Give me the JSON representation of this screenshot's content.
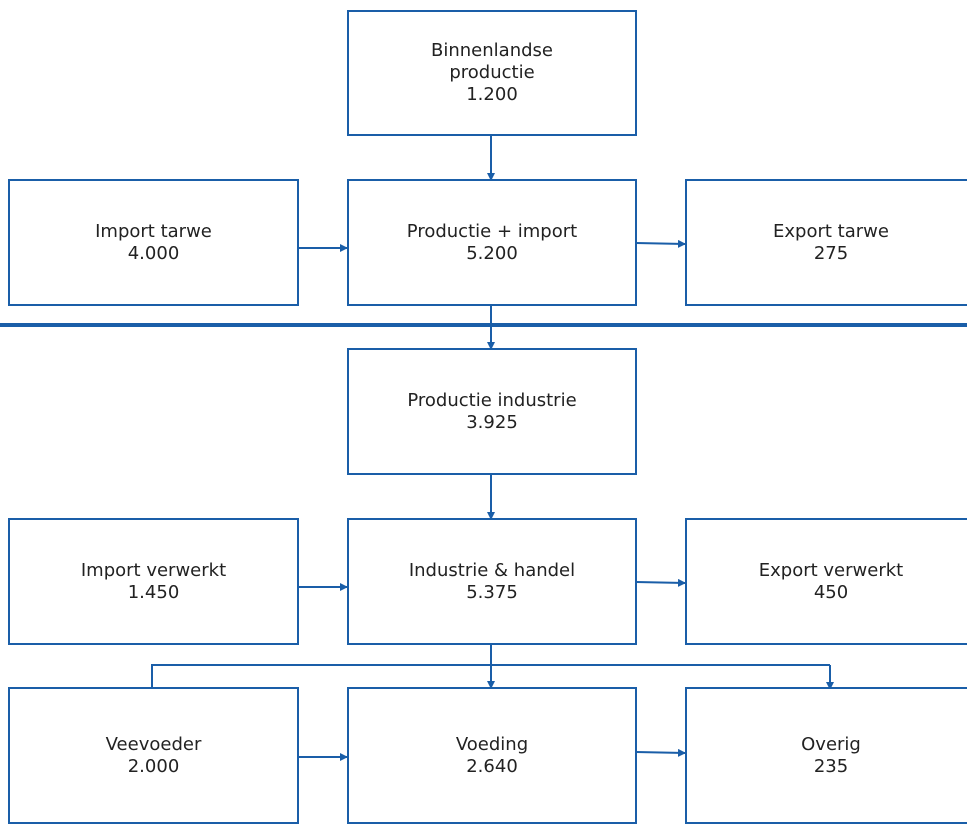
{
  "nodes": [
    {
      "label": "Binnenlandse productie",
      "value": "1.200"
    },
    {
      "label": "Import tarwe",
      "value": "4.000"
    },
    {
      "label": "Productie + import",
      "value": "5.200"
    },
    {
      "label": "Export tarwe",
      "value": "275"
    },
    {
      "label": "Productie industrie",
      "value": "3.925"
    },
    {
      "label": "Import verwerkt",
      "value": "1.450"
    },
    {
      "label": "Industrie & handel",
      "value": "5.375"
    },
    {
      "label": "Export verwerkt",
      "value": "450"
    },
    {
      "label": "Veevoeder",
      "value": "2.000"
    },
    {
      "label": "Voeding",
      "value": "2.640"
    },
    {
      "label": "Overig",
      "value": "235"
    }
  ]
}
